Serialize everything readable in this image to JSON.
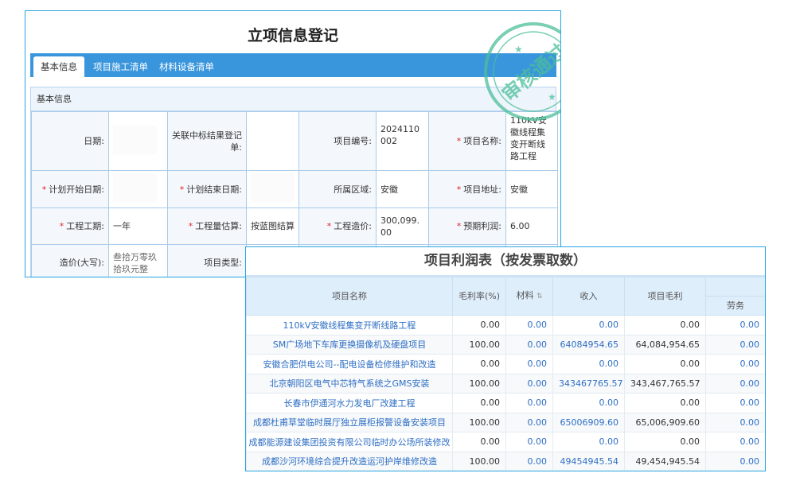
{
  "form": {
    "title": "立项信息登记",
    "tabs": [
      {
        "label": "基本信息",
        "active": true
      },
      {
        "label": "项目施工清单"
      },
      {
        "label": "材料设备清单"
      }
    ],
    "section_title": "基本信息",
    "fields": {
      "date": {
        "label": "日期:",
        "value": ""
      },
      "bid_result": {
        "label": "关联中标结果登记单:",
        "value": ""
      },
      "project_no": {
        "label": "项目编号:",
        "value": "2024110002"
      },
      "project_name": {
        "label": "项目名称:",
        "value": "110kV安徽线程集变开断线路工程",
        "required": true
      },
      "plan_start": {
        "label": "计划开始日期:",
        "value": "",
        "required": true
      },
      "plan_end": {
        "label": "计划结束日期:",
        "value": "",
        "required": true
      },
      "region": {
        "label": "所属区域:",
        "value": "安徽"
      },
      "address": {
        "label": "项目地址:",
        "value": "安徽",
        "required": true
      },
      "duration": {
        "label": "工程工期:",
        "value": "一年",
        "required": true
      },
      "quantity_est": {
        "label": "工程量估算:",
        "value": "按蓝图结算",
        "required": true
      },
      "cost": {
        "label": "工程造价:",
        "value": "300,099.00",
        "required": true
      },
      "profit": {
        "label": "预期利润:",
        "value": "6.00",
        "required": true
      },
      "cost_words": {
        "label": "造价(大写):",
        "value": "叁拾万零玖拾玖元整"
      },
      "project_type": {
        "label": "项目类型:",
        "value": ""
      }
    },
    "stamp": {
      "text": "审核通过",
      "color": "#4cbf9a"
    }
  },
  "profit_table": {
    "title": "项目利润表（按发票取数）",
    "columns": [
      "项目名称",
      "毛利率(%)",
      "材料",
      "收入",
      "项目毛利",
      "劳务"
    ],
    "rows": [
      [
        "110kV安徽线程集变开断线路工程",
        "0.00",
        "0.00",
        "0.00",
        "0.00",
        "0.00"
      ],
      [
        "SM广场地下车库更换摄像机及硬盘项目",
        "100.00",
        "0.00",
        "64084954.65",
        "64,084,954.65",
        "0.00"
      ],
      [
        "安徽合肥供电公司--配电设备检修维护和改造",
        "0.00",
        "0.00",
        "0.00",
        "0.00",
        "0.00"
      ],
      [
        "北京朝阳区电气中芯特气系统之GMS安装",
        "100.00",
        "0.00",
        "343467765.57",
        "343,467,765.57",
        "0.00"
      ],
      [
        "长春市伊通河水力发电厂改建工程",
        "0.00",
        "0.00",
        "0.00",
        "0.00",
        "0.00"
      ],
      [
        "成都杜甫草堂临时展厅独立展柜报警设备安装项目",
        "100.00",
        "0.00",
        "65006909.60",
        "65,006,909.60",
        "0.00"
      ],
      [
        "成都能源建设集团投资有限公司临时办公场所装修改",
        "0.00",
        "0.00",
        "0.00",
        "0.00",
        "0.00"
      ],
      [
        "成都沙河环境综合提升改造运河护岸维修改造",
        "100.00",
        "0.00",
        "49454945.54",
        "49,454,945.54",
        "0.00"
      ]
    ]
  },
  "colors": {
    "tab_bar": "#3a96dc",
    "link": "#2f6fc4",
    "border": "#29a3e0"
  }
}
